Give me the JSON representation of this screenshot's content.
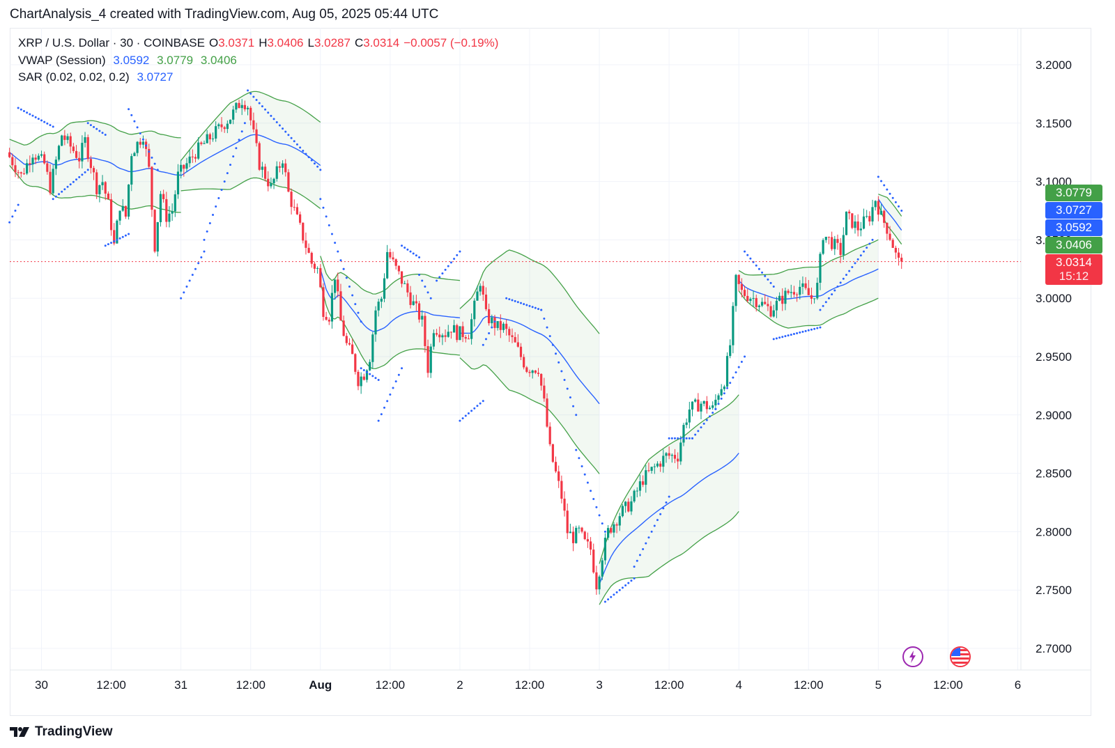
{
  "header": "ChartAnalysis_4 created with TradingView.com, Aug 05, 2025 05:44 UTC",
  "legend": {
    "symbol": "XRP / U.S. Dollar · 30 · COINBASE",
    "o_label": "O",
    "o": "3.0371",
    "h_label": "H",
    "h": "3.0406",
    "l_label": "L",
    "l": "3.0287",
    "c_label": "C",
    "c": "3.0314",
    "change": "−0.0057 (−0.19%)",
    "vwap_name": "VWAP (Session)",
    "vwap": "3.0592",
    "vwap_upper": "3.0779",
    "vwap_lower": "3.0406",
    "sar_name": "SAR (0.02, 0.02, 0.2)",
    "sar": "3.0727"
  },
  "badges": {
    "upper": "3.0779",
    "sar": "3.0727",
    "vwap": "3.0592",
    "lower": "3.0406",
    "price": "3.0314",
    "countdown": "15:12"
  },
  "brand": "TradingView",
  "colors": {
    "up": "#089981",
    "down": "#f23645",
    "vwap": "#2962ff",
    "band": "#43a047",
    "sar": "#2962ff"
  },
  "chart_data": {
    "type": "candlestick",
    "y_ticks": [
      "3.2000",
      "3.1500",
      "3.1000",
      "3.0500",
      "3.0000",
      "2.9500",
      "2.9000",
      "2.8500",
      "2.8000",
      "2.7500",
      "2.7000"
    ],
    "y_range": [
      2.69,
      3.22
    ],
    "x_ticks": [
      {
        "label": "30",
        "t": 0
      },
      {
        "label": "12:00",
        "t": 12
      },
      {
        "label": "31",
        "t": 24
      },
      {
        "label": "12:00",
        "t": 36
      },
      {
        "label": "Aug",
        "t": 48
      },
      {
        "label": "12:00",
        "t": 60
      },
      {
        "label": "2",
        "t": 72
      },
      {
        "label": "12:00",
        "t": 84
      },
      {
        "label": "3",
        "t": 96
      },
      {
        "label": "12:00",
        "t": 108
      },
      {
        "label": "4",
        "t": 120
      },
      {
        "label": "12:00",
        "t": 132
      },
      {
        "label": "5",
        "t": 144
      },
      {
        "label": "12:00",
        "t": 156
      },
      {
        "label": "6",
        "t": 168
      }
    ],
    "x_unit": "hours since Jul 30 00:00 UTC",
    "last_price": 3.0314,
    "price_path": [
      [
        -5.5,
        3.125
      ],
      [
        -3,
        3.105
      ],
      [
        -1,
        3.125
      ],
      [
        1,
        3.115
      ],
      [
        2,
        3.095
      ],
      [
        4,
        3.14
      ],
      [
        7,
        3.12
      ],
      [
        8,
        3.135
      ],
      [
        10,
        3.095
      ],
      [
        11,
        3.1
      ],
      [
        12,
        3.08
      ],
      [
        13,
        3.045
      ],
      [
        14,
        3.08
      ],
      [
        15,
        3.07
      ],
      [
        16,
        3.125
      ],
      [
        18,
        3.14
      ],
      [
        19,
        3.11
      ],
      [
        20,
        3.045
      ],
      [
        21,
        3.09
      ],
      [
        22,
        3.07
      ],
      [
        23,
        3.075
      ],
      [
        24,
        3.105
      ],
      [
        27,
        3.125
      ],
      [
        30,
        3.14
      ],
      [
        33,
        3.155
      ],
      [
        35,
        3.17
      ],
      [
        36,
        3.165
      ],
      [
        37,
        3.14
      ],
      [
        38,
        3.115
      ],
      [
        40,
        3.095
      ],
      [
        42,
        3.12
      ],
      [
        43,
        3.09
      ],
      [
        45,
        3.06
      ],
      [
        47,
        3.03
      ],
      [
        48,
        3.025
      ],
      [
        49,
        2.99
      ],
      [
        50,
        2.985
      ],
      [
        51,
        3.02
      ],
      [
        52,
        2.98
      ],
      [
        53,
        2.96
      ],
      [
        54,
        2.95
      ],
      [
        55,
        2.93
      ],
      [
        56,
        2.935
      ],
      [
        57,
        2.95
      ],
      [
        58,
        2.99
      ],
      [
        59,
        3.0
      ],
      [
        60,
        3.04
      ],
      [
        61,
        3.03
      ],
      [
        62,
        3.02
      ],
      [
        64,
        3.0
      ],
      [
        65,
        2.99
      ],
      [
        66,
        2.98
      ],
      [
        67,
        2.94
      ],
      [
        68,
        2.975
      ],
      [
        70,
        2.97
      ],
      [
        71,
        2.975
      ],
      [
        72,
        2.97
      ],
      [
        74,
        2.97
      ],
      [
        76,
        3.015
      ],
      [
        77,
        2.985
      ],
      [
        79,
        2.975
      ],
      [
        80,
        2.975
      ],
      [
        82,
        2.96
      ],
      [
        83,
        2.95
      ],
      [
        84,
        2.94
      ],
      [
        86,
        2.94
      ],
      [
        87,
        2.91
      ],
      [
        88,
        2.87
      ],
      [
        89,
        2.85
      ],
      [
        90,
        2.83
      ],
      [
        91,
        2.8
      ],
      [
        92,
        2.795
      ],
      [
        93,
        2.8
      ],
      [
        94,
        2.79
      ],
      [
        95,
        2.785
      ],
      [
        96,
        2.755
      ],
      [
        97,
        2.78
      ],
      [
        98,
        2.8
      ],
      [
        100,
        2.815
      ],
      [
        102,
        2.825
      ],
      [
        104,
        2.845
      ],
      [
        106,
        2.855
      ],
      [
        108,
        2.865
      ],
      [
        110,
        2.865
      ],
      [
        111,
        2.89
      ],
      [
        112,
        2.905
      ],
      [
        114,
        2.91
      ],
      [
        116,
        2.905
      ],
      [
        117,
        2.92
      ],
      [
        118,
        2.93
      ],
      [
        119,
        2.96
      ],
      [
        120,
        3.015
      ],
      [
        121,
        3.005
      ],
      [
        123,
        3.0
      ],
      [
        126,
        2.99
      ],
      [
        129,
        3.005
      ],
      [
        131,
        3.01
      ],
      [
        133,
        3.0
      ],
      [
        134,
        3.01
      ],
      [
        135,
        3.055
      ],
      [
        136,
        3.05
      ],
      [
        138,
        3.04
      ],
      [
        139,
        3.07
      ],
      [
        141,
        3.06
      ],
      [
        143,
        3.07
      ],
      [
        144,
        3.085
      ],
      [
        145,
        3.07
      ],
      [
        146,
        3.06
      ],
      [
        146.8,
        3.049
      ],
      [
        147.5,
        3.037
      ],
      [
        148,
        3.031
      ]
    ],
    "vwap_sessions": [
      {
        "t0": -5.5,
        "t1": 24,
        "base": 3.11,
        "bw": 0.032
      },
      {
        "t0": 24,
        "t1": 48,
        "base": 3.128,
        "bw": 0.037
      },
      {
        "t0": 48,
        "t1": 72,
        "base": 2.985,
        "bw": 0.032
      },
      {
        "t0": 72,
        "t1": 96,
        "base": 2.975,
        "bw": 0.06
      },
      {
        "t0": 96,
        "t1": 120,
        "base": 2.815,
        "bw": 0.05
      },
      {
        "t0": 120,
        "t1": 144,
        "base": 3.0,
        "bw": 0.025
      },
      {
        "t0": 144,
        "t1": 148,
        "base": 3.05,
        "bw": 0.012
      }
    ],
    "sar_segments": [
      {
        "t0": -4,
        "t1": 2,
        "v0": 3.163,
        "v1": 3.147
      },
      {
        "t0": -5.5,
        "t1": -4,
        "v0": 3.065,
        "v1": 3.08
      },
      {
        "t0": 2,
        "t1": 8,
        "v0": 3.085,
        "v1": 3.11
      },
      {
        "t0": 8,
        "t1": 11,
        "v0": 3.15,
        "v1": 3.14
      },
      {
        "t0": 11,
        "t1": 15,
        "v0": 3.045,
        "v1": 3.055
      },
      {
        "t0": 15,
        "t1": 20,
        "v0": 3.162,
        "v1": 3.11
      },
      {
        "t0": 24,
        "t1": 28,
        "v0": 3.0,
        "v1": 3.04
      },
      {
        "t0": 28,
        "t1": 35,
        "v0": 3.05,
        "v1": 3.15
      },
      {
        "t0": 35.5,
        "t1": 48,
        "v0": 3.178,
        "v1": 3.11
      },
      {
        "t0": 48,
        "t1": 52,
        "v0": 3.085,
        "v1": 3.025
      },
      {
        "t0": 52,
        "t1": 55,
        "v0": 3.025,
        "v1": 2.98
      },
      {
        "t0": 55,
        "t1": 58,
        "v0": 2.94,
        "v1": 2.93
      },
      {
        "t0": 58,
        "t1": 62,
        "v0": 2.895,
        "v1": 2.94
      },
      {
        "t0": 62,
        "t1": 65,
        "v0": 3.045,
        "v1": 3.035
      },
      {
        "t0": 65,
        "t1": 67,
        "v0": 3.02,
        "v1": 3.0
      },
      {
        "t0": 68,
        "t1": 72,
        "v0": 3.015,
        "v1": 3.04
      },
      {
        "t0": 72,
        "t1": 76,
        "v0": 2.895,
        "v1": 2.912
      },
      {
        "t0": 76,
        "t1": 78,
        "v0": 2.96,
        "v1": 2.98
      },
      {
        "t0": 80,
        "t1": 86,
        "v0": 3.0,
        "v1": 2.99
      },
      {
        "t0": 86,
        "t1": 92,
        "v0": 2.99,
        "v1": 2.9
      },
      {
        "t0": 92,
        "t1": 97,
        "v0": 2.87,
        "v1": 2.8
      },
      {
        "t0": 97,
        "t1": 102,
        "v0": 2.74,
        "v1": 2.76
      },
      {
        "t0": 102,
        "t1": 108,
        "v0": 2.77,
        "v1": 2.83
      },
      {
        "t0": 108,
        "t1": 112,
        "v0": 2.88,
        "v1": 2.88
      },
      {
        "t0": 112,
        "t1": 116,
        "v0": 2.88,
        "v1": 2.905
      },
      {
        "t0": 116,
        "t1": 121,
        "v0": 2.905,
        "v1": 2.95
      },
      {
        "t0": 121,
        "t1": 126,
        "v0": 3.04,
        "v1": 3.01
      },
      {
        "t0": 126,
        "t1": 134,
        "v0": 2.965,
        "v1": 2.975
      },
      {
        "t0": 134,
        "t1": 143,
        "v0": 2.99,
        "v1": 3.05
      },
      {
        "t0": 144,
        "t1": 148,
        "v0": 3.104,
        "v1": 3.075
      }
    ]
  }
}
